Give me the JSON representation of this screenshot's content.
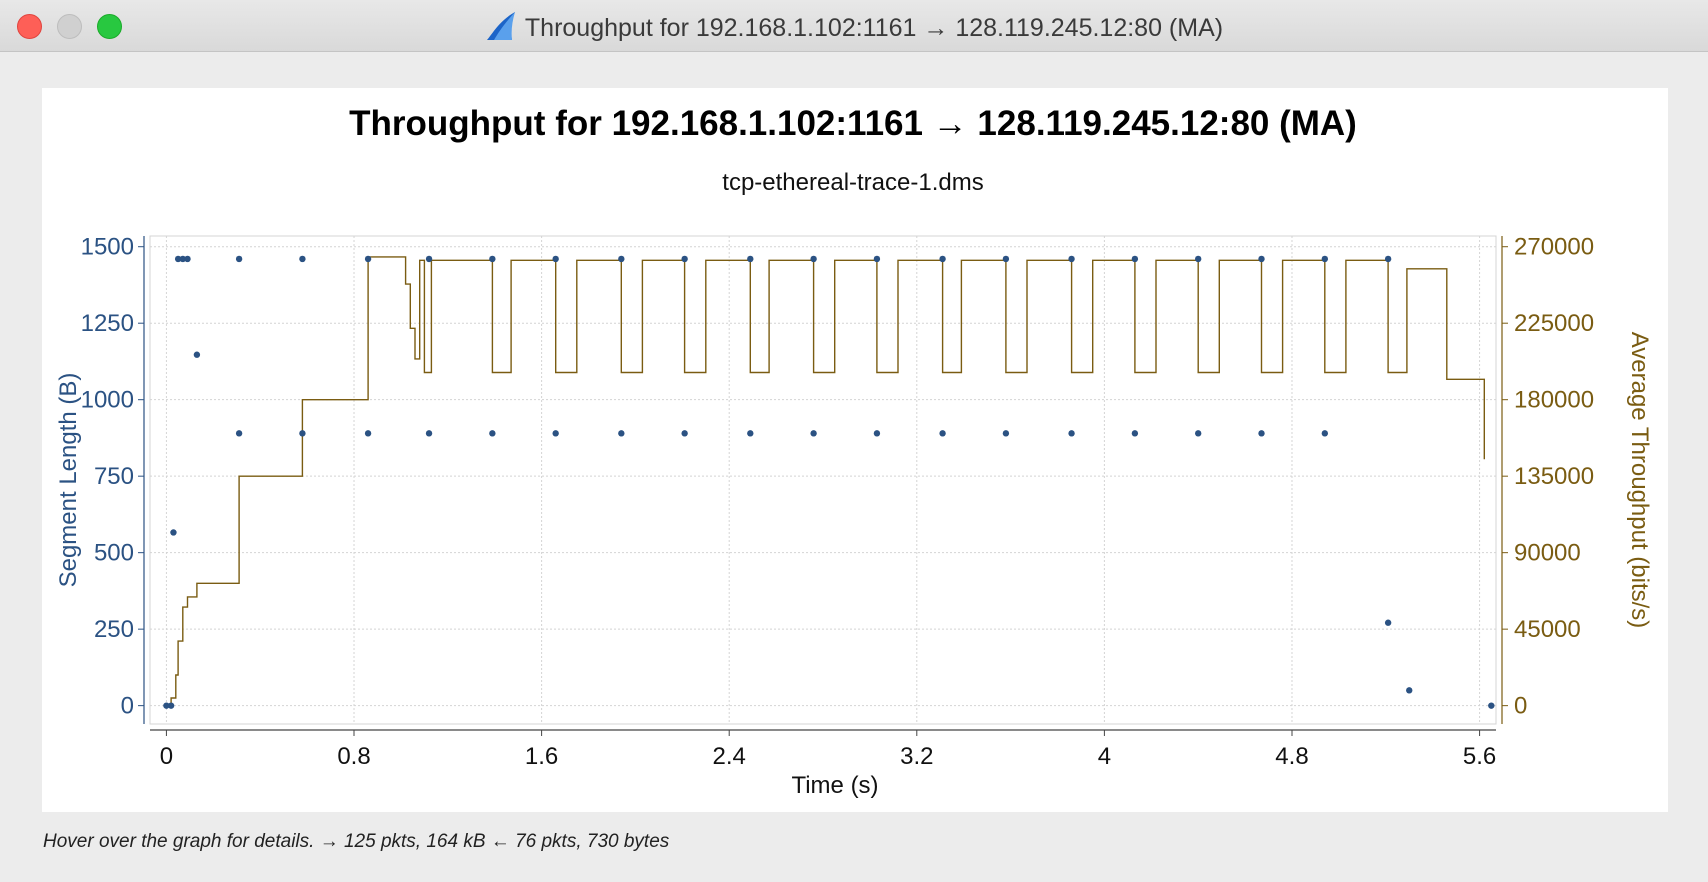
{
  "window": {
    "title": "Throughput for 192.168.1.102:1161 → 128.119.245.12:80 (MA)",
    "app_icon": "wireshark-fin-icon"
  },
  "status_bar": {
    "text": "Hover over the graph for details. → 125 pkts, 164 kB ← 76 pkts, 730 bytes"
  },
  "colors": {
    "segment": "#2b5283",
    "throughput": "#7a5c12",
    "grid": "#d4d4d4"
  },
  "chart_data": {
    "type": "scatter",
    "title": "Throughput for 192.168.1.102:1161 → 128.119.245.12:80 (MA)",
    "subtitle": "tcp-ethereal-trace-1.dms",
    "xlabel": "Time (s)",
    "ylabel": "Segment Length (B)",
    "y2label": "Average Throughput (bits/s)",
    "xlim": [
      -0.07,
      5.67
    ],
    "ylim": [
      -60,
      1535
    ],
    "y2lim": [
      -10800,
      276300
    ],
    "xticks": [
      "0",
      "0.8",
      "1.6",
      "2.4",
      "3.2",
      "4",
      "4.8",
      "5.6"
    ],
    "yticks": [
      "0",
      "250",
      "500",
      "750",
      "1000",
      "1250",
      "1500"
    ],
    "y2ticks": [
      "0",
      "45000",
      "90000",
      "135000",
      "180000",
      "225000",
      "270000"
    ],
    "grid": true,
    "series": [
      {
        "name": "Segment Length (B)",
        "axis": "left",
        "type": "scatter",
        "x": [
          0.0,
          0.02,
          0.03,
          0.05,
          0.07,
          0.09,
          0.13,
          0.31,
          0.31,
          0.58,
          0.58,
          0.86,
          0.86,
          1.12,
          1.12,
          1.39,
          1.39,
          1.66,
          1.66,
          1.94,
          1.94,
          2.21,
          2.21,
          2.49,
          2.49,
          2.76,
          2.76,
          3.03,
          3.03,
          3.31,
          3.31,
          3.58,
          3.58,
          3.86,
          3.86,
          4.13,
          4.13,
          4.4,
          4.4,
          4.67,
          4.67,
          4.94,
          4.94,
          5.21,
          5.21,
          5.3,
          5.65
        ],
        "y": [
          0,
          0,
          566,
          1460,
          1460,
          1460,
          1147,
          1460,
          890,
          1460,
          890,
          1460,
          890,
          1460,
          890,
          1460,
          890,
          1460,
          890,
          1460,
          890,
          1460,
          890,
          1460,
          890,
          1460,
          890,
          1460,
          890,
          1460,
          890,
          1460,
          890,
          1460,
          890,
          1460,
          890,
          1460,
          890,
          1460,
          890,
          1460,
          890,
          1460,
          271,
          50,
          0
        ]
      },
      {
        "name": "Average Throughput (bits/s)",
        "axis": "right",
        "type": "step",
        "x": [
          0.0,
          0.02,
          0.04,
          0.05,
          0.07,
          0.09,
          0.13,
          0.31,
          0.58,
          0.86,
          1.02,
          1.04,
          1.06,
          1.08,
          1.1,
          1.13,
          1.14,
          1.39,
          1.47,
          1.66,
          1.75,
          1.94,
          2.03,
          2.21,
          2.3,
          2.49,
          2.57,
          2.76,
          2.85,
          3.03,
          3.12,
          3.31,
          3.39,
          3.58,
          3.67,
          3.86,
          3.95,
          4.13,
          4.22,
          4.4,
          4.49,
          4.67,
          4.76,
          4.94,
          5.03,
          5.21,
          5.29,
          5.46,
          5.57,
          5.62
        ],
        "y": [
          0,
          4500,
          18000,
          38000,
          58000,
          64000,
          72000,
          135000,
          180000,
          264000,
          248000,
          222000,
          204000,
          262000,
          196000,
          262000,
          262000,
          196000,
          262000,
          196000,
          262000,
          196000,
          262000,
          196000,
          262000,
          196000,
          262000,
          196000,
          262000,
          196000,
          262000,
          196000,
          262000,
          196000,
          262000,
          196000,
          262000,
          196000,
          262000,
          196000,
          262000,
          196000,
          262000,
          196000,
          262000,
          196000,
          257000,
          192000,
          192000,
          145000
        ]
      }
    ]
  }
}
